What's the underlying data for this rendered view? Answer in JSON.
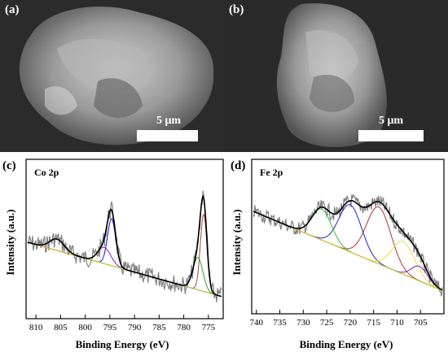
{
  "panels": {
    "a": {
      "label": "(a)",
      "scale_text": "5 μm"
    },
    "b": {
      "label": "(b)",
      "scale_text": "5 μm"
    },
    "c": {
      "label": "(c)",
      "element": "Co 2p"
    },
    "d": {
      "label": "(d)",
      "element": "Fe 2p"
    }
  },
  "chart_data": [
    {
      "type": "line",
      "panel": "c",
      "title": "Co 2p",
      "xlabel": "Binding Energy (eV)",
      "ylabel": "Intensity (a.u.)",
      "xlim": [
        812,
        772
      ],
      "x_reversed": true,
      "x_ticks": [
        "810",
        "805",
        "800",
        "795",
        "790",
        "785",
        "780",
        "775"
      ],
      "y_ticks": [],
      "series": []
    },
    {
      "type": "line",
      "panel": "d",
      "title": "Fe 2p",
      "xlabel": "Binding Energy (eV)",
      "ylabel": "Intensity (a.u.)",
      "xlim": [
        741,
        700
      ],
      "x_reversed": true,
      "x_ticks": [
        "740",
        "735",
        "730",
        "725",
        "720",
        "715",
        "710",
        "705"
      ],
      "y_ticks": [],
      "series": []
    }
  ],
  "colors": {
    "raw": "#808080",
    "envelope": "#000000",
    "c_peak_main": "#a0522d",
    "c_peak_sat": "#1010d0",
    "d_red": "#b03030",
    "d_blue": "#2020d0",
    "d_green": "#30c030",
    "d_yellow": "#e8e040",
    "d_purple": "#8020c0",
    "baseline": "#e0d020"
  }
}
